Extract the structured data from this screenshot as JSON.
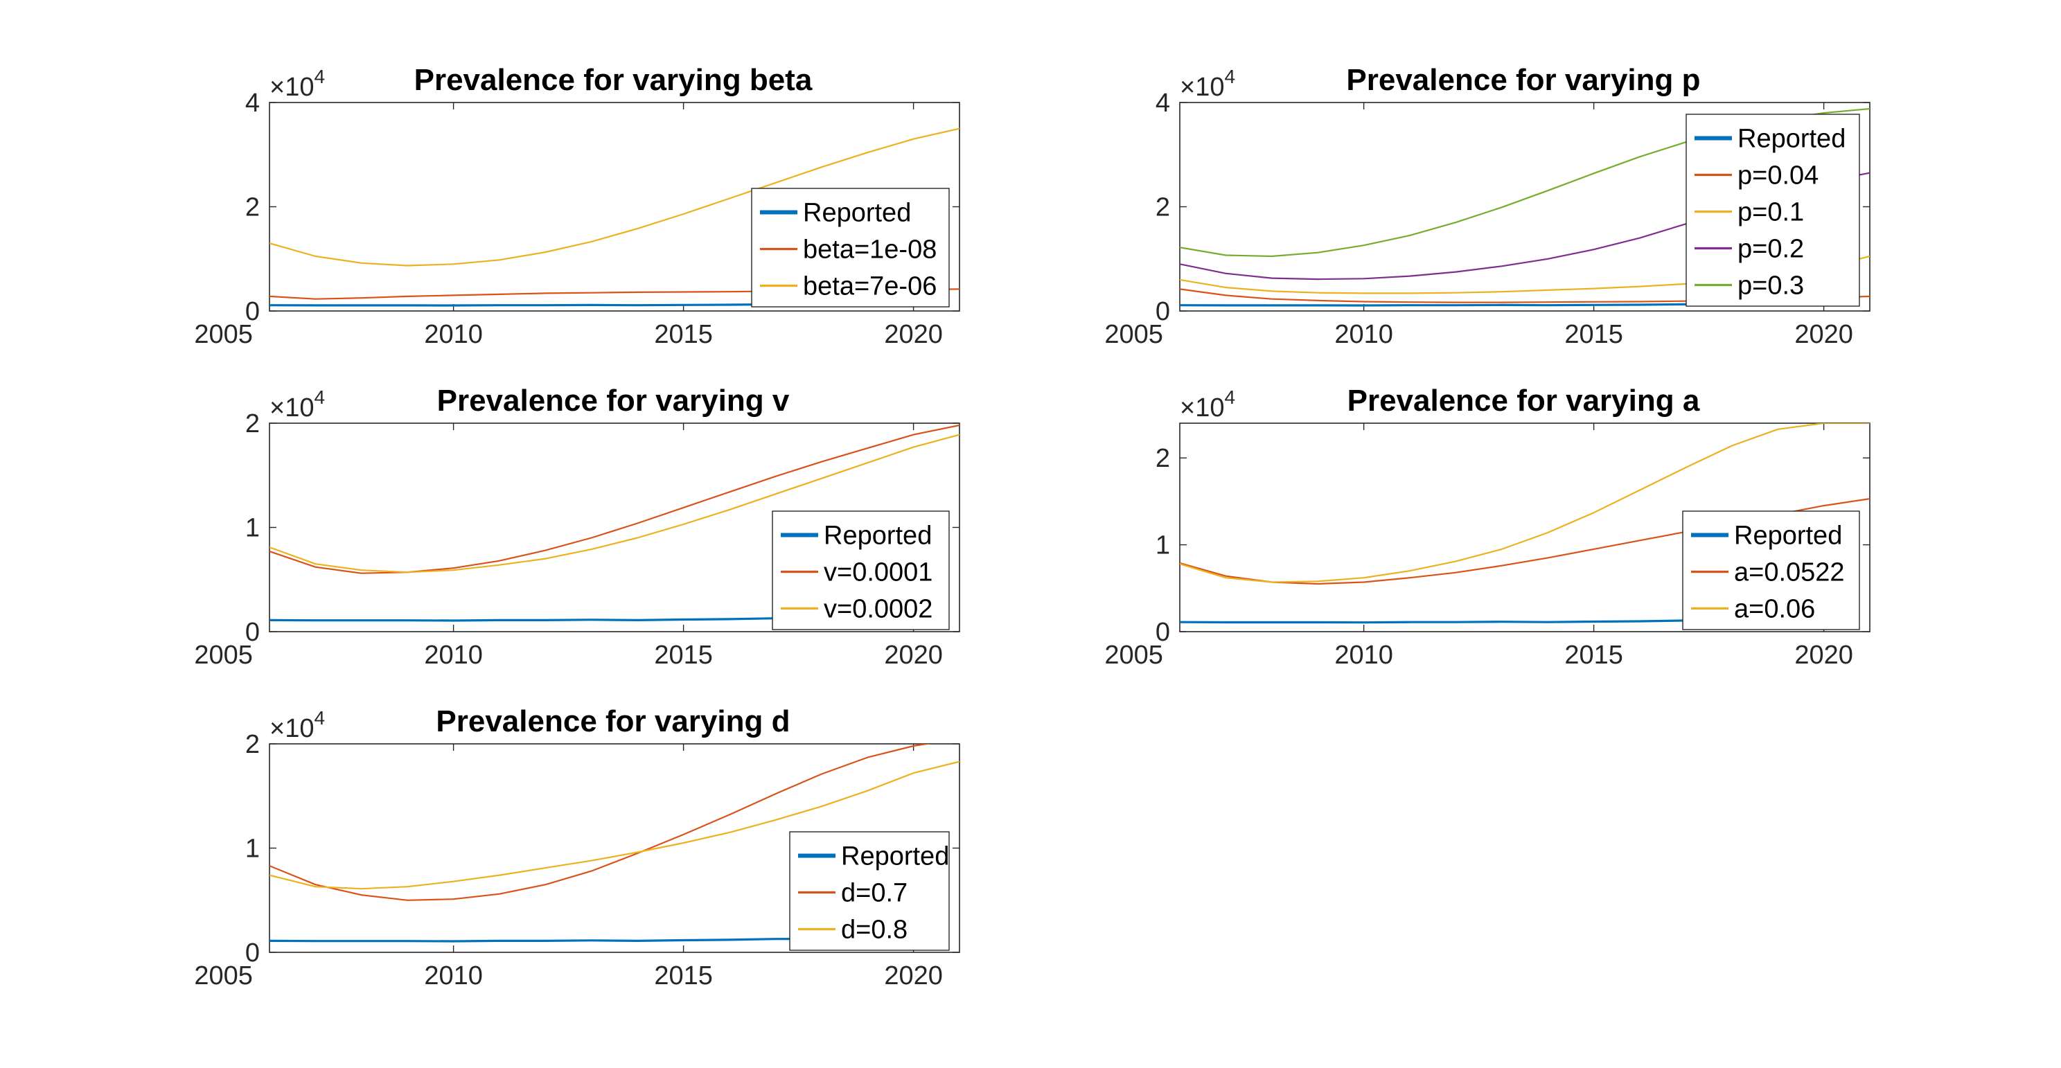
{
  "colors": {
    "reported": "#0072BD",
    "series2": "#D95319",
    "series3": "#EDB120",
    "series4": "#7E2F8E",
    "series5": "#77AC30",
    "axis": "#262626",
    "tick": "#4D4D4D"
  },
  "chart_data": [
    {
      "type": "line",
      "title": "Prevalence for varying beta",
      "xlim": [
        2006,
        2021
      ],
      "ylim": [
        0,
        40000
      ],
      "xticks": [
        2005,
        2010,
        2015,
        2020
      ],
      "yticks": [
        0,
        20000,
        40000
      ],
      "ytick_labels": [
        "0",
        "2",
        "4"
      ],
      "exponent_label": "×10",
      "exponent_power": "4",
      "legend_position": "right",
      "grid": false,
      "x": [
        2006,
        2007,
        2008,
        2009,
        2010,
        2011,
        2012,
        2013,
        2014,
        2015,
        2016,
        2017,
        2018,
        2019,
        2020,
        2021
      ],
      "series": [
        {
          "name": "Reported",
          "values": [
            1100,
            1080,
            1080,
            1080,
            1060,
            1100,
            1100,
            1140,
            1100,
            1160,
            1200,
            1280,
            1300,
            1350,
            1250,
            null
          ],
          "width": 3.2
        },
        {
          "name": "beta=1e-08",
          "values": [
            2800,
            2300,
            2500,
            2800,
            3000,
            3200,
            3400,
            3500,
            3600,
            3650,
            3700,
            3800,
            3900,
            4000,
            4100,
            4200
          ],
          "width": 2.2
        },
        {
          "name": "beta=7e-06",
          "values": [
            13000,
            10500,
            9200,
            8700,
            9000,
            9800,
            11300,
            13300,
            15800,
            18600,
            21600,
            24600,
            27600,
            30400,
            33000,
            35000
          ],
          "width": 2.2
        }
      ]
    },
    {
      "type": "line",
      "title": "Prevalence for varying p",
      "xlim": [
        2006,
        2021
      ],
      "ylim": [
        0,
        40000
      ],
      "xticks": [
        2005,
        2010,
        2015,
        2020
      ],
      "yticks": [
        0,
        20000,
        40000
      ],
      "ytick_labels": [
        "0",
        "2",
        "4"
      ],
      "exponent_label": "×10",
      "exponent_power": "4",
      "legend_position": "top-right",
      "grid": false,
      "x": [
        2006,
        2007,
        2008,
        2009,
        2010,
        2011,
        2012,
        2013,
        2014,
        2015,
        2016,
        2017,
        2018,
        2019,
        2020,
        2021
      ],
      "series": [
        {
          "name": "Reported",
          "values": [
            1100,
            1080,
            1080,
            1080,
            1060,
            1100,
            1100,
            1140,
            1100,
            1160,
            1200,
            1280,
            1300,
            1350,
            1250,
            null
          ],
          "width": 3.2
        },
        {
          "name": "p=0.04",
          "values": [
            4200,
            3000,
            2300,
            2000,
            1800,
            1700,
            1650,
            1650,
            1700,
            1750,
            1800,
            1900,
            2000,
            2200,
            2500,
            2800
          ],
          "width": 2.2
        },
        {
          "name": "p=0.1",
          "values": [
            6000,
            4500,
            3800,
            3500,
            3400,
            3400,
            3500,
            3700,
            4000,
            4300,
            4700,
            5200,
            5900,
            6900,
            8300,
            10500
          ],
          "width": 2.2
        },
        {
          "name": "p=0.2",
          "values": [
            9000,
            7200,
            6300,
            6100,
            6200,
            6700,
            7500,
            8600,
            10000,
            11800,
            14000,
            16700,
            19500,
            22300,
            24800,
            26500
          ],
          "width": 2.2
        },
        {
          "name": "p=0.3",
          "values": [
            12200,
            10700,
            10500,
            11200,
            12600,
            14500,
            17000,
            19900,
            23100,
            26400,
            29600,
            32400,
            34700,
            36700,
            38000,
            38800
          ],
          "width": 2.2
        }
      ]
    },
    {
      "type": "line",
      "title": "Prevalence for varying v",
      "xlim": [
        2006,
        2021
      ],
      "ylim": [
        0,
        20000
      ],
      "xticks": [
        2005,
        2010,
        2015,
        2020
      ],
      "yticks": [
        0,
        10000,
        20000
      ],
      "ytick_labels": [
        "0",
        "1",
        "2"
      ],
      "exponent_label": "×10",
      "exponent_power": "4",
      "legend_position": "bottom-right",
      "grid": false,
      "x": [
        2006,
        2007,
        2008,
        2009,
        2010,
        2011,
        2012,
        2013,
        2014,
        2015,
        2016,
        2017,
        2018,
        2019,
        2020,
        2021
      ],
      "series": [
        {
          "name": "Reported",
          "values": [
            1100,
            1080,
            1080,
            1080,
            1060,
            1100,
            1100,
            1140,
            1100,
            1160,
            1200,
            1280,
            1300,
            1350,
            1250,
            null
          ],
          "width": 3.2
        },
        {
          "name": "v=0.0001",
          "values": [
            7700,
            6200,
            5600,
            5700,
            6100,
            6800,
            7800,
            9000,
            10400,
            11900,
            13400,
            14900,
            16300,
            17600,
            18900,
            19800
          ],
          "width": 2.2
        },
        {
          "name": "v=0.0002",
          "values": [
            8100,
            6500,
            5900,
            5700,
            5900,
            6400,
            7000,
            7900,
            9000,
            10300,
            11700,
            13200,
            14700,
            16200,
            17700,
            18900
          ],
          "width": 2.2
        }
      ]
    },
    {
      "type": "line",
      "title": "Prevalence for varying a",
      "xlim": [
        2006,
        2021
      ],
      "ylim": [
        0,
        24000
      ],
      "xticks": [
        2005,
        2010,
        2015,
        2020
      ],
      "yticks": [
        0,
        10000,
        20000
      ],
      "ytick_labels": [
        "0",
        "1",
        "2"
      ],
      "exponent_label": "×10",
      "exponent_power": "4",
      "legend_position": "bottom-right",
      "grid": false,
      "x": [
        2006,
        2007,
        2008,
        2009,
        2010,
        2011,
        2012,
        2013,
        2014,
        2015,
        2016,
        2017,
        2018,
        2019,
        2020,
        2021
      ],
      "series": [
        {
          "name": "Reported",
          "values": [
            1100,
            1080,
            1080,
            1080,
            1060,
            1100,
            1100,
            1140,
            1100,
            1160,
            1200,
            1280,
            1300,
            1350,
            1250,
            null
          ],
          "width": 3.2
        },
        {
          "name": "a=0.0522",
          "values": [
            7900,
            6400,
            5700,
            5500,
            5700,
            6200,
            6800,
            7600,
            8500,
            9500,
            10500,
            11500,
            12500,
            13500,
            14500,
            15300
          ],
          "width": 2.2
        },
        {
          "name": "a=0.06",
          "values": [
            7800,
            6200,
            5700,
            5800,
            6200,
            7000,
            8100,
            9500,
            11400,
            13700,
            16300,
            18900,
            21400,
            23300,
            24000,
            24000
          ],
          "width": 2.2
        }
      ]
    },
    {
      "type": "line",
      "title": "Prevalence for varying d",
      "xlim": [
        2006,
        2021
      ],
      "ylim": [
        0,
        20000
      ],
      "xticks": [
        2005,
        2010,
        2015,
        2020
      ],
      "yticks": [
        0,
        10000,
        20000
      ],
      "ytick_labels": [
        "0",
        "1",
        "2"
      ],
      "exponent_label": "×10",
      "exponent_power": "4",
      "legend_position": "bottom-right",
      "grid": false,
      "x": [
        2006,
        2007,
        2008,
        2009,
        2010,
        2011,
        2012,
        2013,
        2014,
        2015,
        2016,
        2017,
        2018,
        2019,
        2020,
        2021
      ],
      "series": [
        {
          "name": "Reported",
          "values": [
            1100,
            1080,
            1080,
            1080,
            1060,
            1100,
            1100,
            1140,
            1100,
            1160,
            1200,
            1280,
            1300,
            1350,
            1250,
            null
          ],
          "width": 3.2
        },
        {
          "name": "d=0.7",
          "values": [
            8300,
            6500,
            5500,
            5000,
            5100,
            5600,
            6500,
            7800,
            9500,
            11300,
            13200,
            15200,
            17100,
            18700,
            19800,
            20500
          ],
          "width": 2.2
        },
        {
          "name": "d=0.8",
          "values": [
            7400,
            6300,
            6100,
            6300,
            6800,
            7400,
            8100,
            8800,
            9600,
            10500,
            11500,
            12700,
            14000,
            15500,
            17200,
            18300
          ],
          "width": 2.2
        }
      ]
    }
  ]
}
